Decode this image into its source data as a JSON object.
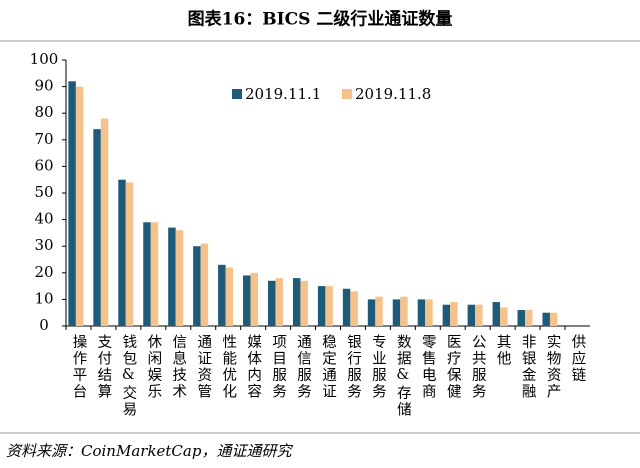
{
  "chart_data": {
    "type": "bar",
    "title": "图表16：BICS 二级行业通证数量",
    "categories": [
      "操作平台",
      "支付结算",
      "钱包&交易",
      "休闲娱乐",
      "信息技术",
      "通证资管",
      "性能优化",
      "媒体内容",
      "项目服务",
      "通信服务",
      "稳定通证",
      "银行服务",
      "专业服务",
      "数据&存储",
      "零售电商",
      "医疗保健",
      "公共服务",
      "其他",
      "非银金融",
      "实物资产",
      "供应链"
    ],
    "series": [
      {
        "name": "2019.11.1",
        "color": "#1d5b78",
        "values": [
          92,
          74,
          55,
          39,
          37,
          30,
          23,
          19,
          17,
          18,
          15,
          14,
          10,
          10,
          10,
          8,
          8,
          9,
          6,
          5,
          0
        ]
      },
      {
        "name": "2019.11.8",
        "color": "#f5c28c",
        "values": [
          90,
          78,
          54,
          39,
          36,
          31,
          22,
          20,
          18,
          17,
          15,
          13,
          11,
          11,
          10,
          9,
          8,
          7,
          6,
          5,
          0
        ]
      }
    ],
    "ylim": [
      0,
      100
    ],
    "yticks": [
      0,
      10,
      20,
      30,
      40,
      50,
      60,
      70,
      80,
      90,
      100
    ],
    "grid": false,
    "source": "资料来源：CoinMarketCap，通证通研究"
  }
}
